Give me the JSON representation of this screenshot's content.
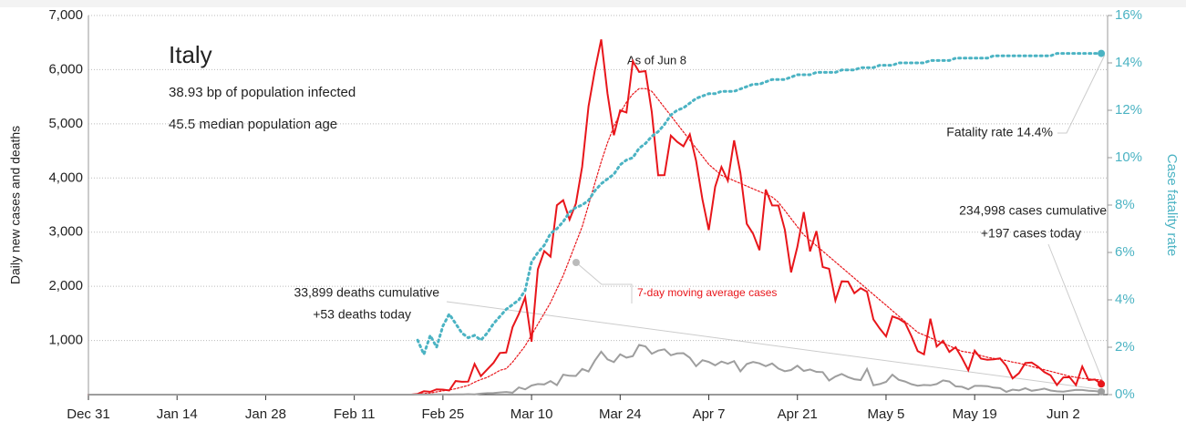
{
  "chart_data": {
    "type": "line",
    "title": "Italy",
    "subtitle": [
      "38.93 bp of population infected",
      "45.5 median population age"
    ],
    "ylabel": "Daily new cases and deaths",
    "y2label": "Case fatality rate",
    "annotations": [
      "As of Jun 8",
      "Fatality rate 14.4%",
      "234,998 cases cumulative",
      "+197 cases today",
      "33,899 deaths cumulative",
      "+53 deaths today",
      "7-day moving average cases"
    ],
    "xlim": [
      0,
      161
    ],
    "xticks": [
      {
        "value": 0,
        "label": "Dec 31"
      },
      {
        "value": 14,
        "label": "Jan 14"
      },
      {
        "value": 28,
        "label": "Jan 28"
      },
      {
        "value": 42,
        "label": "Feb 11"
      },
      {
        "value": 56,
        "label": "Feb 25"
      },
      {
        "value": 70,
        "label": "Mar 10"
      },
      {
        "value": 84,
        "label": "Mar 24"
      },
      {
        "value": 98,
        "label": "Apr 7"
      },
      {
        "value": 112,
        "label": "Apr 21"
      },
      {
        "value": 126,
        "label": "May 5"
      },
      {
        "value": 140,
        "label": "May 19"
      },
      {
        "value": 154,
        "label": "Jun 2"
      }
    ],
    "ylim": [
      0,
      7000
    ],
    "yticks": [
      {
        "value": 1000,
        "label": "1,000"
      },
      {
        "value": 2000,
        "label": "2,000"
      },
      {
        "value": 3000,
        "label": "3,000"
      },
      {
        "value": 4000,
        "label": "4,000"
      },
      {
        "value": 5000,
        "label": "5,000"
      },
      {
        "value": 6000,
        "label": "6,000"
      },
      {
        "value": 7000,
        "label": "7,000"
      }
    ],
    "y2lim": [
      0,
      16
    ],
    "y2ticks": [
      {
        "value": 0,
        "label": "0%"
      },
      {
        "value": 2,
        "label": "2%"
      },
      {
        "value": 4,
        "label": "4%"
      },
      {
        "value": 6,
        "label": "6%"
      },
      {
        "value": 8,
        "label": "8%"
      },
      {
        "value": 10,
        "label": "10%"
      },
      {
        "value": 12,
        "label": "12%"
      },
      {
        "value": 14,
        "label": "14%"
      },
      {
        "value": 16,
        "label": "16%"
      }
    ],
    "grid": true,
    "x": [
      0,
      51,
      52,
      53,
      54,
      55,
      56,
      57,
      58,
      59,
      60,
      61,
      62,
      63,
      64,
      65,
      66,
      67,
      68,
      69,
      70,
      71,
      72,
      73,
      74,
      75,
      76,
      77,
      78,
      79,
      80,
      81,
      82,
      83,
      84,
      85,
      86,
      87,
      88,
      89,
      90,
      91,
      92,
      93,
      94,
      95,
      96,
      97,
      98,
      99,
      100,
      101,
      102,
      103,
      104,
      105,
      106,
      107,
      108,
      109,
      110,
      111,
      112,
      113,
      114,
      115,
      116,
      117,
      118,
      119,
      120,
      121,
      122,
      123,
      124,
      125,
      126,
      127,
      128,
      129,
      130,
      131,
      132,
      133,
      134,
      135,
      136,
      137,
      138,
      139,
      140,
      141,
      142,
      143,
      144,
      145,
      146,
      147,
      148,
      149,
      150,
      151,
      152,
      153,
      154,
      155,
      156,
      157,
      158,
      159,
      160
    ],
    "series": [
      {
        "name": "Cases",
        "color": "#e8161b",
        "style": "solid",
        "values": [
          0,
          0,
          14,
          62,
          53,
          97,
          93,
          78,
          250,
          238,
          240,
          566,
          342,
          466,
          587,
          769,
          778,
          1247,
          1492,
          1797,
          977,
          2313,
          2651,
          2547,
          3497,
          3590,
          3233,
          3526,
          4207,
          5322,
          5986,
          6557,
          5560,
          4789,
          5249,
          5210,
          6153,
          5959,
          5974,
          5217,
          4050,
          4053,
          4782,
          4668,
          4585,
          4805,
          4316,
          3599,
          3039,
          3836,
          4204,
          3951,
          4694,
          4092,
          3153,
          2972,
          2667,
          3786,
          3493,
          3491,
          3047,
          2256,
          2729,
          3370,
          2646,
          3021,
          2357,
          2324,
          1739,
          2091,
          2086,
          1872,
          1965,
          1900,
          1389,
          1221,
          1075,
          1444,
          1401,
          1327,
          1083,
          802,
          744,
          1402,
          888,
          992,
          789,
          875,
          675,
          451,
          813,
          665,
          642,
          652,
          669,
          531,
          300,
          397,
          584,
          593,
          516,
          416,
          355,
          178,
          318,
          321,
          177,
          518,
          270,
          280,
          197
        ]
      },
      {
        "name": "7-day moving average cases",
        "color": "#e8161b",
        "style": "dotted",
        "values": [
          null,
          null,
          10,
          20,
          30,
          50,
          70,
          85,
          110,
          140,
          170,
          230,
          280,
          320,
          380,
          450,
          480,
          600,
          750,
          900,
          1100,
          1300,
          1500,
          1700,
          1950,
          2200,
          2500,
          2800,
          3100,
          3500,
          3900,
          4300,
          4650,
          4950,
          5200,
          5400,
          5550,
          5650,
          5650,
          5600,
          5450,
          5300,
          5150,
          5000,
          4850,
          4700,
          4550,
          4400,
          4250,
          4150,
          4050,
          4000,
          3950,
          3900,
          3850,
          3800,
          3750,
          3700,
          3650,
          3550,
          3400,
          3250,
          3100,
          2950,
          2850,
          2750,
          2650,
          2550,
          2450,
          2350,
          2250,
          2150,
          2050,
          1950,
          1850,
          1750,
          1650,
          1550,
          1450,
          1350,
          1250,
          1150,
          1100,
          1050,
          1000,
          950,
          900,
          850,
          800,
          780,
          760,
          720,
          690,
          670,
          650,
          630,
          600,
          580,
          550,
          520,
          490,
          460,
          430,
          400,
          370,
          340,
          320,
          300,
          290,
          280,
          270
        ]
      },
      {
        "name": "Deaths",
        "color": "#9e9e9e",
        "style": "solid",
        "values": [
          0,
          0,
          1,
          1,
          1,
          4,
          4,
          1,
          5,
          4,
          8,
          5,
          18,
          27,
          28,
          41,
          49,
          36,
          133,
          97,
          168,
          196,
          189,
          250,
          175,
          368,
          349,
          345,
          475,
          427,
          627,
          793,
          651,
          601,
          743,
          683,
          712,
          919,
          889,
          756,
          812,
          837,
          727,
          760,
          766,
          681,
          525,
          636,
          604,
          542,
          610,
          570,
          619,
          431,
          566,
          602,
          578,
          525,
          575,
          482,
          433,
          454,
          534,
          437,
          464,
          420,
          415,
          260,
          333,
          382,
          323,
          285,
          269,
          474,
          174,
          195,
          236,
          369,
          274,
          243,
          194,
          165,
          179,
          172,
          195,
          262,
          242,
          153,
          145,
          99,
          162,
          161,
          156,
          130,
          119,
          50,
          92,
          78,
          117,
          70,
          87,
          111,
          75,
          60,
          55,
          71,
          88,
          85,
          72,
          65,
          53
        ]
      },
      {
        "name": "Case fatality rate",
        "color": "#4bb3c3",
        "style": "dotted",
        "axis": "y2",
        "values": [
          null,
          null,
          2.3,
          1.7,
          2.5,
          2.0,
          2.9,
          3.4,
          3.0,
          2.6,
          2.4,
          2.5,
          2.3,
          2.6,
          3.0,
          3.3,
          3.6,
          3.8,
          4.0,
          4.4,
          5.6,
          6.0,
          6.3,
          6.8,
          7.0,
          7.3,
          7.7,
          7.9,
          8.0,
          8.2,
          8.6,
          8.9,
          9.1,
          9.3,
          9.7,
          9.9,
          10.0,
          10.4,
          10.6,
          10.9,
          11.1,
          11.4,
          11.8,
          12.0,
          12.1,
          12.3,
          12.5,
          12.6,
          12.7,
          12.7,
          12.8,
          12.8,
          12.8,
          12.9,
          13.0,
          13.1,
          13.1,
          13.2,
          13.3,
          13.3,
          13.3,
          13.4,
          13.5,
          13.5,
          13.5,
          13.6,
          13.6,
          13.6,
          13.6,
          13.7,
          13.7,
          13.7,
          13.8,
          13.8,
          13.8,
          13.9,
          13.9,
          13.9,
          14.0,
          14.0,
          14.0,
          14.0,
          14.0,
          14.1,
          14.1,
          14.1,
          14.1,
          14.2,
          14.2,
          14.2,
          14.2,
          14.2,
          14.2,
          14.3,
          14.3,
          14.3,
          14.3,
          14.3,
          14.3,
          14.3,
          14.3,
          14.3,
          14.3,
          14.4,
          14.4,
          14.4,
          14.4,
          14.4,
          14.4,
          14.4,
          14.4
        ]
      }
    ]
  }
}
